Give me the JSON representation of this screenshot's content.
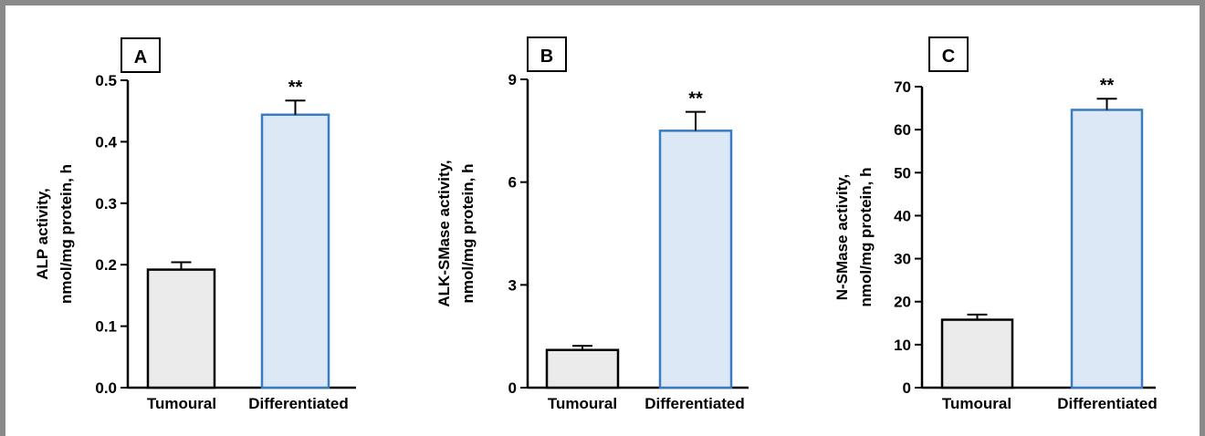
{
  "chart_data": [
    {
      "type": "bar",
      "panel_label": "A",
      "categories": [
        "Tumoural",
        "Differentiated"
      ],
      "values": [
        0.192,
        0.444
      ],
      "errors": [
        0.012,
        0.023
      ],
      "significance": [
        "",
        "**"
      ],
      "ylabel_lines": [
        "ALP activity,",
        "nmol/mg protein, h"
      ],
      "ylim": [
        0,
        0.5
      ],
      "yticks": [
        0.0,
        0.1,
        0.2,
        0.3,
        0.4,
        0.5
      ],
      "ytick_labels": [
        "0.0",
        "0.1",
        "0.2",
        "0.3",
        "0.4",
        "0.5"
      ],
      "bar_fill": [
        "#ebebeb",
        "#dde8f6"
      ],
      "bar_stroke": [
        "#000000",
        "#3a7cbf"
      ]
    },
    {
      "type": "bar",
      "panel_label": "B",
      "categories": [
        "Tumoural",
        "Differentiated"
      ],
      "values": [
        1.1,
        7.5
      ],
      "errors": [
        0.12,
        0.55
      ],
      "significance": [
        "",
        "**"
      ],
      "ylabel_lines": [
        "ALK-SMase activity,",
        "nmol/mg protein, h"
      ],
      "ylim": [
        0,
        9
      ],
      "yticks": [
        0,
        3,
        6,
        9
      ],
      "ytick_labels": [
        "0",
        "3",
        "6",
        "9"
      ],
      "bar_fill": [
        "#ebebeb",
        "#dde8f6"
      ],
      "bar_stroke": [
        "#000000",
        "#3a7cbf"
      ]
    },
    {
      "type": "bar",
      "panel_label": "C",
      "categories": [
        "Tumoural",
        "Differentiated"
      ],
      "values": [
        15.8,
        64.6
      ],
      "errors": [
        1.2,
        2.6
      ],
      "significance": [
        "",
        "**"
      ],
      "ylabel_lines": [
        "N-SMase activity,",
        "nmol/mg protein, h"
      ],
      "ylim": [
        0,
        70
      ],
      "yticks": [
        0,
        10,
        20,
        30,
        40,
        50,
        60,
        70
      ],
      "ytick_labels": [
        "0",
        "10",
        "20",
        "30",
        "40",
        "50",
        "60",
        "70"
      ],
      "bar_fill": [
        "#ebebeb",
        "#dde8f6"
      ],
      "bar_stroke": [
        "#000000",
        "#3a7cbf"
      ]
    }
  ]
}
